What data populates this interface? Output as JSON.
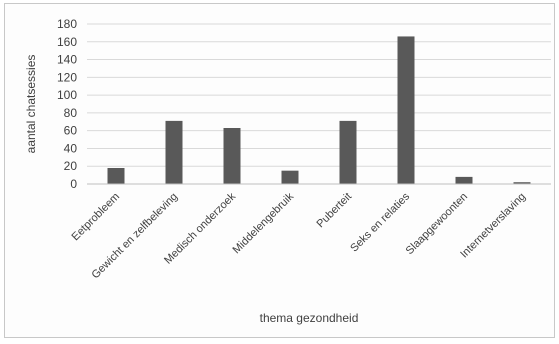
{
  "chart_data": {
    "type": "bar",
    "title": "",
    "xlabel": "thema gezondheid",
    "ylabel": "aantal chatsessies",
    "ylim": [
      0,
      180
    ],
    "y_ticks": [
      0,
      20,
      40,
      60,
      80,
      100,
      120,
      140,
      160,
      180
    ],
    "grid": true,
    "categories": [
      "Eetprobleem",
      "Gewicht en zelfbeleving",
      "Medisch onderzoek",
      "Middelengebruik",
      "Puberteit",
      "Seks en relaties",
      "Slaapgewoonten",
      "Internetverslaving"
    ],
    "values": [
      18,
      71,
      63,
      15,
      71,
      166,
      8,
      2
    ],
    "bar_color": "#595959",
    "grid_color": "#d9d9d9"
  }
}
